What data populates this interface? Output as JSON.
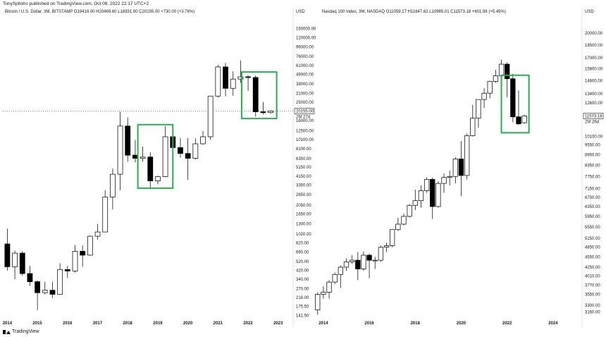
{
  "header": {
    "text": "TonySpilotro published on TradingView.com, Oct 06, 2022 22:17 UTC+2"
  },
  "footer": {
    "brand": "TradingView"
  },
  "colors": {
    "highlight": "#22b14c",
    "bear": "#000000",
    "bull": "#ffffff",
    "outline": "#131722"
  },
  "chart_data": [
    {
      "type": "candlestick",
      "legend": "Bitcoin / U.S. Dollar, 3M, BITSTAMP  O19419.00  H20469.60  L18931.00  C20155.00  +730.00 (+3.76%)",
      "unit": "USD",
      "scale": "log",
      "ylim": [
        135,
        205000
      ],
      "y_ticks": [
        "150000.00",
        "120000.00",
        "96000.00",
        "76000.00",
        "61000.00",
        "49000.00",
        "39000.00",
        "31000.00",
        "25000.00",
        "16000.00",
        "12500.00",
        "10100.00",
        "8100.00",
        "6350.00",
        "5150.00",
        "4150.00",
        "3350.00",
        "2650.00",
        "2050.00",
        "1650.00",
        "1300.00",
        "1020.00",
        "820.00",
        "660.00",
        "520.00",
        "420.00",
        "340.00",
        "270.00",
        "218.00",
        "175.50",
        "141.50"
      ],
      "x_ticks": [
        {
          "label": "2014",
          "t": 2014.0
        },
        {
          "label": "2015",
          "t": 2015.0
        },
        {
          "label": "2016",
          "t": 2016.0
        },
        {
          "label": "2017",
          "t": 2017.0
        },
        {
          "label": "2018",
          "t": 2018.0
        },
        {
          "label": "2019",
          "t": 2019.0
        },
        {
          "label": "2020",
          "t": 2020.0
        },
        {
          "label": "2021",
          "t": 2021.0
        },
        {
          "label": "2022",
          "t": 2022.0
        },
        {
          "label": "2023",
          "t": 2023.0
        }
      ],
      "xlim": [
        2013.85,
        2023.45
      ],
      "price_label": {
        "value": "20155.00",
        "countdown": "2M 27d"
      },
      "candles": [
        {
          "t": 2014.0,
          "o": 800,
          "h": 1160,
          "l": 420,
          "c": 460
        },
        {
          "t": 2014.25,
          "o": 460,
          "h": 680,
          "l": 340,
          "c": 640
        },
        {
          "t": 2014.5,
          "o": 640,
          "h": 670,
          "l": 370,
          "c": 390
        },
        {
          "t": 2014.75,
          "o": 390,
          "h": 470,
          "l": 290,
          "c": 320
        },
        {
          "t": 2015.0,
          "o": 320,
          "h": 330,
          "l": 160,
          "c": 245
        },
        {
          "t": 2015.25,
          "o": 245,
          "h": 320,
          "l": 235,
          "c": 260
        },
        {
          "t": 2015.5,
          "o": 260,
          "h": 320,
          "l": 215,
          "c": 236
        },
        {
          "t": 2015.75,
          "o": 236,
          "h": 500,
          "l": 235,
          "c": 430
        },
        {
          "t": 2016.0,
          "o": 430,
          "h": 470,
          "l": 350,
          "c": 415
        },
        {
          "t": 2016.25,
          "o": 415,
          "h": 780,
          "l": 400,
          "c": 670
        },
        {
          "t": 2016.5,
          "o": 670,
          "h": 770,
          "l": 460,
          "c": 610
        },
        {
          "t": 2016.75,
          "o": 610,
          "h": 980,
          "l": 600,
          "c": 965
        },
        {
          "t": 2017.0,
          "o": 965,
          "h": 1300,
          "l": 890,
          "c": 1070
        },
        {
          "t": 2017.25,
          "o": 1070,
          "h": 2950,
          "l": 1060,
          "c": 2500
        },
        {
          "t": 2017.5,
          "o": 2500,
          "h": 5000,
          "l": 1850,
          "c": 4350
        },
        {
          "t": 2017.75,
          "o": 4350,
          "h": 19800,
          "l": 2950,
          "c": 14000
        },
        {
          "t": 2018.0,
          "o": 14000,
          "h": 17300,
          "l": 5900,
          "c": 6900
        },
        {
          "t": 2018.25,
          "o": 6900,
          "h": 10000,
          "l": 5800,
          "c": 6400
        },
        {
          "t": 2018.5,
          "o": 6400,
          "h": 8500,
          "l": 5900,
          "c": 6600
        },
        {
          "t": 2018.75,
          "o": 6600,
          "h": 7400,
          "l": 3150,
          "c": 3700
        },
        {
          "t": 2019.0,
          "o": 3700,
          "h": 4200,
          "l": 3400,
          "c": 4100
        },
        {
          "t": 2019.25,
          "o": 4100,
          "h": 13900,
          "l": 4050,
          "c": 10800
        },
        {
          "t": 2019.5,
          "o": 10800,
          "h": 12300,
          "l": 7700,
          "c": 8300
        },
        {
          "t": 2019.75,
          "o": 8300,
          "h": 10500,
          "l": 6500,
          "c": 7200
        },
        {
          "t": 2020.0,
          "o": 7200,
          "h": 10500,
          "l": 3800,
          "c": 6400
        },
        {
          "t": 2020.25,
          "o": 6400,
          "h": 10400,
          "l": 6200,
          "c": 9100
        },
        {
          "t": 2020.5,
          "o": 9100,
          "h": 12400,
          "l": 8900,
          "c": 10800
        },
        {
          "t": 2020.75,
          "o": 10800,
          "h": 29000,
          "l": 10000,
          "c": 29000
        },
        {
          "t": 2021.0,
          "o": 29000,
          "h": 61800,
          "l": 28000,
          "c": 58800
        },
        {
          "t": 2021.25,
          "o": 58800,
          "h": 64900,
          "l": 28800,
          "c": 35000
        },
        {
          "t": 2021.5,
          "o": 35000,
          "h": 52900,
          "l": 29300,
          "c": 43800
        },
        {
          "t": 2021.75,
          "o": 43800,
          "h": 69000,
          "l": 40000,
          "c": 46300
        },
        {
          "t": 2022.0,
          "o": 46300,
          "h": 48200,
          "l": 32900,
          "c": 45500
        },
        {
          "t": 2022.25,
          "o": 45500,
          "h": 48000,
          "l": 17600,
          "c": 19800
        },
        {
          "t": 2022.5,
          "o": 19800,
          "h": 25200,
          "l": 18600,
          "c": 19400
        },
        {
          "t": 2022.75,
          "o": 19419,
          "h": 20469.6,
          "l": 18931,
          "c": 20155
        }
      ],
      "highlights": [
        {
          "t0": 2018.5,
          "t1": 2019.5,
          "p0": 3100,
          "p1": 14500
        },
        {
          "t0": 2021.95,
          "t1": 2022.95,
          "p0": 16800,
          "p1": 52000
        }
      ]
    },
    {
      "type": "candlestick",
      "legend": "Nasdaq 100 Index, 3M, NASDAQ  O11059.17  H11647.62  L10985.01  C11573.18  +601.96 (+5.49%)",
      "unit": "USD",
      "scale": "log",
      "ylim": [
        3050,
        22500
      ],
      "y_ticks": [
        "20000.00",
        "18500.00",
        "17000.00",
        "15800.00",
        "14600.00",
        "13400.00",
        "12600.00",
        "11600.00",
        "10100.00",
        "9550.00",
        "8950.00",
        "8350.00",
        "7750.00",
        "7150.00",
        "6750.00",
        "6350.00",
        "5950.00",
        "5550.00",
        "5150.00",
        "4850.00",
        "4550.00",
        "4250.00",
        "4010.00",
        "3770.00",
        "3550.00",
        "3300.00",
        "3160.00"
      ],
      "x_ticks": [
        {
          "label": "2014",
          "t": 2014.0
        },
        {
          "label": "2016",
          "t": 2016.0
        },
        {
          "label": "2018",
          "t": 2018.0
        },
        {
          "label": "2020",
          "t": 2020.0
        },
        {
          "label": "2022",
          "t": 2022.0
        },
        {
          "label": "2024",
          "t": 2024.0
        }
      ],
      "xlim": [
        2013.85,
        2025.2
      ],
      "price_label": {
        "value": "11573.18",
        "countdown": "2M 26d"
      },
      "candles": [
        {
          "t": 2013.75,
          "o": 3200,
          "h": 3600,
          "l": 3100,
          "c": 3550
        },
        {
          "t": 2014.0,
          "o": 3550,
          "h": 3750,
          "l": 3450,
          "c": 3600
        },
        {
          "t": 2014.25,
          "o": 3600,
          "h": 3900,
          "l": 3450,
          "c": 3850
        },
        {
          "t": 2014.5,
          "o": 3850,
          "h": 4100,
          "l": 3800,
          "c": 4050
        },
        {
          "t": 2014.75,
          "o": 4050,
          "h": 4300,
          "l": 3700,
          "c": 4250
        },
        {
          "t": 2015.0,
          "o": 4250,
          "h": 4500,
          "l": 4150,
          "c": 4400
        },
        {
          "t": 2015.25,
          "o": 4400,
          "h": 4600,
          "l": 4350,
          "c": 4450
        },
        {
          "t": 2015.5,
          "o": 4450,
          "h": 4700,
          "l": 3900,
          "c": 4200
        },
        {
          "t": 2015.75,
          "o": 4200,
          "h": 4720,
          "l": 4150,
          "c": 4600
        },
        {
          "t": 2016.0,
          "o": 4600,
          "h": 4650,
          "l": 3950,
          "c": 4450
        },
        {
          "t": 2016.25,
          "o": 4450,
          "h": 4550,
          "l": 4200,
          "c": 4450
        },
        {
          "t": 2016.5,
          "o": 4450,
          "h": 4900,
          "l": 4400,
          "c": 4850
        },
        {
          "t": 2016.75,
          "o": 4850,
          "h": 5000,
          "l": 4700,
          "c": 4900
        },
        {
          "t": 2017.0,
          "o": 4900,
          "h": 5450,
          "l": 4850,
          "c": 5450
        },
        {
          "t": 2017.25,
          "o": 5450,
          "h": 5900,
          "l": 5400,
          "c": 5650
        },
        {
          "t": 2017.5,
          "o": 5650,
          "h": 6050,
          "l": 5600,
          "c": 5950
        },
        {
          "t": 2017.75,
          "o": 5950,
          "h": 6450,
          "l": 5900,
          "c": 6400
        },
        {
          "t": 2018.0,
          "o": 6400,
          "h": 7100,
          "l": 6200,
          "c": 6600
        },
        {
          "t": 2018.25,
          "o": 6600,
          "h": 7300,
          "l": 6300,
          "c": 7050
        },
        {
          "t": 2018.5,
          "o": 7050,
          "h": 7700,
          "l": 6950,
          "c": 7600
        },
        {
          "t": 2018.75,
          "o": 7600,
          "h": 7700,
          "l": 5850,
          "c": 6350
        },
        {
          "t": 2019.0,
          "o": 6350,
          "h": 7500,
          "l": 6300,
          "c": 7400
        },
        {
          "t": 2019.25,
          "o": 7400,
          "h": 7900,
          "l": 6950,
          "c": 7700
        },
        {
          "t": 2019.5,
          "o": 7700,
          "h": 8050,
          "l": 7300,
          "c": 7750
        },
        {
          "t": 2019.75,
          "o": 7750,
          "h": 8800,
          "l": 7400,
          "c": 8700
        },
        {
          "t": 2020.0,
          "o": 8700,
          "h": 9800,
          "l": 6800,
          "c": 7800
        },
        {
          "t": 2020.25,
          "o": 7800,
          "h": 10300,
          "l": 7600,
          "c": 10150
        },
        {
          "t": 2020.5,
          "o": 10150,
          "h": 12450,
          "l": 10100,
          "c": 11400
        },
        {
          "t": 2020.75,
          "o": 11400,
          "h": 12900,
          "l": 10700,
          "c": 12900
        },
        {
          "t": 2021.0,
          "o": 12900,
          "h": 13900,
          "l": 12200,
          "c": 13450
        },
        {
          "t": 2021.25,
          "o": 13450,
          "h": 14600,
          "l": 13000,
          "c": 14550
        },
        {
          "t": 2021.5,
          "o": 14550,
          "h": 15700,
          "l": 14400,
          "c": 15100
        },
        {
          "t": 2021.75,
          "o": 15100,
          "h": 16800,
          "l": 14400,
          "c": 16300
        },
        {
          "t": 2022.0,
          "o": 16300,
          "h": 16500,
          "l": 13100,
          "c": 14800
        },
        {
          "t": 2022.25,
          "o": 14800,
          "h": 15300,
          "l": 11100,
          "c": 11500
        },
        {
          "t": 2022.5,
          "o": 11500,
          "h": 13700,
          "l": 10900,
          "c": 10980
        },
        {
          "t": 2022.75,
          "o": 11059.17,
          "h": 11647.62,
          "l": 10985.01,
          "c": 11573.18
        }
      ],
      "highlights": [
        {
          "t0": 2021.95,
          "t1": 2022.95,
          "p0": 10350,
          "p1": 15150
        }
      ]
    }
  ]
}
